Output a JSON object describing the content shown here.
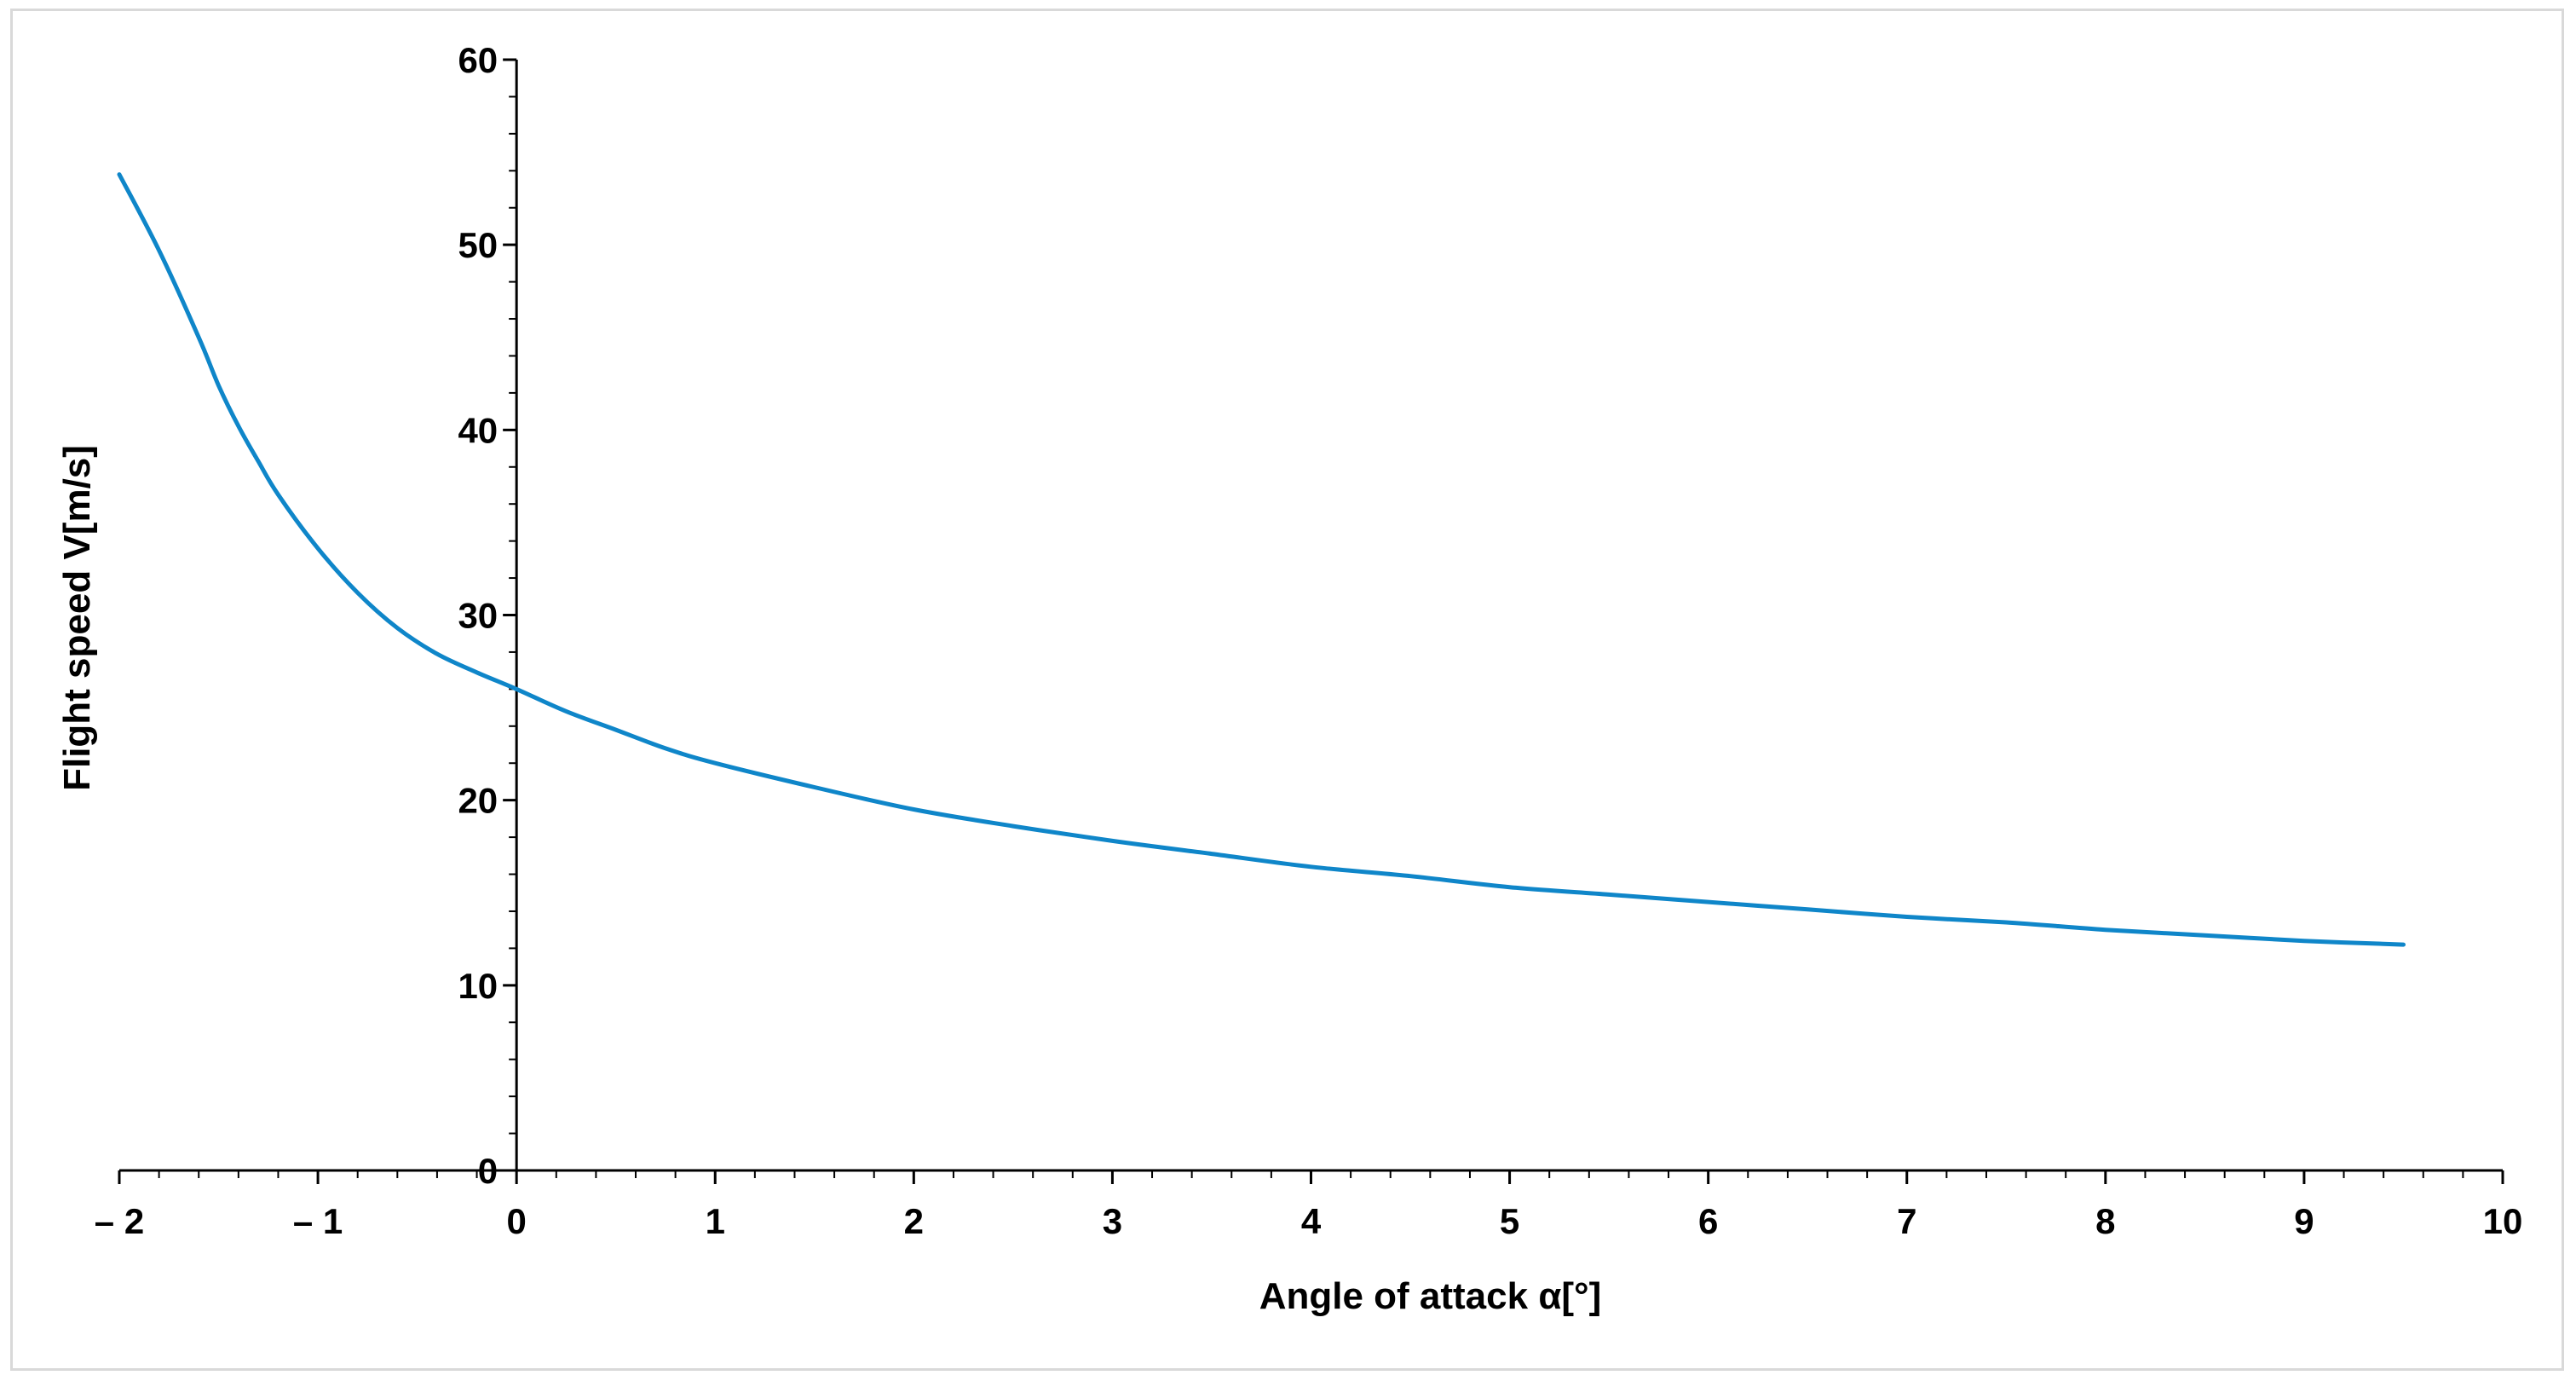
{
  "chart_data": {
    "type": "line",
    "title": "",
    "xlabel": "Angle of attack α[°]",
    "ylabel": "Flight speed V[m/s]",
    "xlim": [
      -2,
      10
    ],
    "ylim": [
      0,
      60
    ],
    "x_ticks": [
      -2,
      -1,
      0,
      1,
      2,
      3,
      4,
      5,
      6,
      7,
      8,
      9,
      10
    ],
    "x_tick_labels": [
      "– 2",
      "– 1",
      "0",
      "1",
      "2",
      "3",
      "4",
      "5",
      "6",
      "7",
      "8",
      "9",
      "10"
    ],
    "y_ticks": [
      0,
      10,
      20,
      30,
      40,
      50,
      60
    ],
    "y_tick_labels": [
      "0",
      "10",
      "20",
      "30",
      "40",
      "50",
      "60"
    ],
    "grid": false,
    "legend": "none",
    "series": [
      {
        "color": "#0f86c9",
        "x": [
          -2.0,
          -1.8,
          -1.6,
          -1.5,
          -1.4,
          -1.3,
          -1.2,
          -1.0,
          -0.8,
          -0.6,
          -0.4,
          -0.2,
          0.0,
          0.25,
          0.5,
          0.75,
          1.0,
          1.5,
          2.0,
          2.5,
          3.0,
          3.5,
          4.0,
          4.5,
          5.0,
          5.5,
          6.0,
          6.5,
          7.0,
          7.5,
          8.0,
          8.5,
          9.0,
          9.5
        ],
        "y": [
          53.8,
          49.7,
          45.0,
          42.4,
          40.2,
          38.3,
          36.5,
          33.6,
          31.2,
          29.3,
          27.9,
          26.9,
          26.0,
          24.8,
          23.8,
          22.8,
          22.0,
          20.7,
          19.5,
          18.6,
          17.8,
          17.1,
          16.4,
          15.9,
          15.3,
          14.9,
          14.5,
          14.1,
          13.7,
          13.4,
          13.0,
          12.7,
          12.4,
          12.2
        ]
      }
    ]
  }
}
